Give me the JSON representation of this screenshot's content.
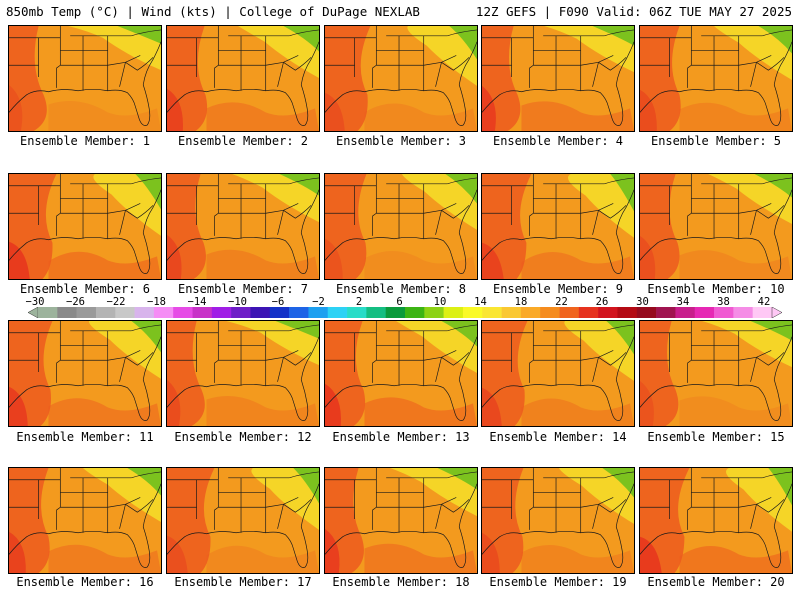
{
  "header": {
    "title_left": "850mb Temp (°C) | Wind (kts) | College of DuPage NEXLAB",
    "title_right": "12Z GEFS | F090 Valid: 06Z TUE MAY 27 2025"
  },
  "colorbar": {
    "tick_labels": [
      "−30",
      "−26",
      "−22",
      "−18",
      "−14",
      "−10",
      "−6",
      "−2",
      "2",
      "6",
      "10",
      "14",
      "18",
      "22",
      "26",
      "30",
      "34",
      "38",
      "42"
    ],
    "colors": [
      "#9cb39c",
      "#8a8a8a",
      "#9a9a9a",
      "#b4b4b4",
      "#c8c8c8",
      "#d8b4ec",
      "#f58cf5",
      "#e64be6",
      "#c832c8",
      "#a01ee6",
      "#6e1ec8",
      "#3c14b4",
      "#1432c8",
      "#1e64e6",
      "#1ea0f0",
      "#2dd2f5",
      "#28dcc8",
      "#14be82",
      "#0a9a3c",
      "#3cb414",
      "#8cd214",
      "#dcf014",
      "#fafa28",
      "#fae632",
      "#fac832",
      "#faaa28",
      "#f58c1e",
      "#f0641e",
      "#e6321e",
      "#d2141e",
      "#b40a14",
      "#960a1e",
      "#a01450",
      "#c81e8c",
      "#e628b4",
      "#f05ad2",
      "#f58ce6",
      "#ffc8f5"
    ]
  },
  "members": [
    {
      "label": "Ensemble Member: 1"
    },
    {
      "label": "Ensemble Member: 2"
    },
    {
      "label": "Ensemble Member: 3"
    },
    {
      "label": "Ensemble Member: 4"
    },
    {
      "label": "Ensemble Member: 5"
    },
    {
      "label": "Ensemble Member: 6"
    },
    {
      "label": "Ensemble Member: 7"
    },
    {
      "label": "Ensemble Member: 8"
    },
    {
      "label": "Ensemble Member: 9"
    },
    {
      "label": "Ensemble Member: 10"
    },
    {
      "label": "Ensemble Member: 11"
    },
    {
      "label": "Ensemble Member: 12"
    },
    {
      "label": "Ensemble Member: 13"
    },
    {
      "label": "Ensemble Member: 14"
    },
    {
      "label": "Ensemble Member: 15"
    },
    {
      "label": "Ensemble Member: 16"
    },
    {
      "label": "Ensemble Member: 17"
    },
    {
      "label": "Ensemble Member: 18"
    },
    {
      "label": "Ensemble Member: 19"
    },
    {
      "label": "Ensemble Member: 20"
    }
  ],
  "colors": {
    "base_orange": "#f39a1e",
    "warm_red": "#ec5a1e",
    "hot_red": "#e6321e",
    "yellow": "#f5dc28",
    "green": "#7cc21e",
    "border": "#1a1a1a"
  }
}
